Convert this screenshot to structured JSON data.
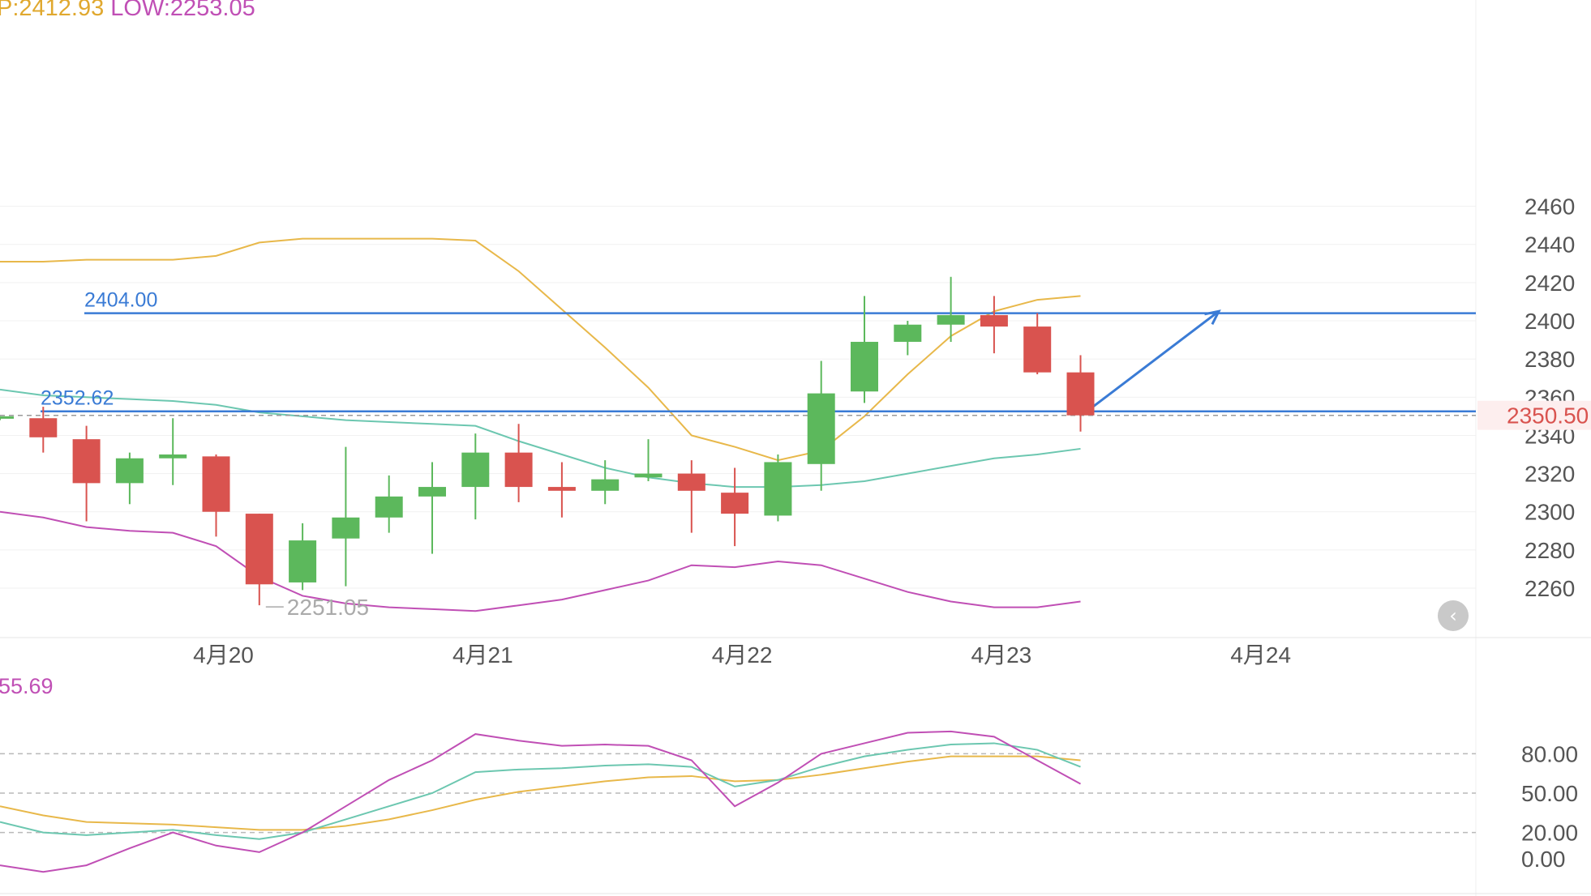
{
  "header": {
    "high_text": "P:2412.93",
    "low_text": "LOW:2253.05",
    "high_color": "#e0a82e",
    "low_color": "#c04fb5"
  },
  "indicator_header": {
    "text": "55.69",
    "color": "#c04fb5"
  },
  "collapse_button": {
    "icon": "chevron-left-icon",
    "glyph": "‹"
  },
  "colors": {
    "up": "#5cb85c",
    "down": "#d9534f",
    "upper_band": "#e8b84a",
    "middle_band": "#6cc7b0",
    "lower_band": "#c04fb5",
    "level_line": "#3a7bd5",
    "current_price": "#d9534f",
    "k_line": "#c04fb5",
    "d_line": "#e8b84a",
    "j_line": "#6cc7b0"
  },
  "chart_data": [
    {
      "type": "candlestick",
      "ylim": [
        2240,
        2470
      ],
      "yticks": [
        2260,
        2280,
        2300,
        2320,
        2340,
        2360,
        2380,
        2400,
        2420,
        2440,
        2460
      ],
      "x_labels": [
        {
          "label": "4月20",
          "index": 5
        },
        {
          "label": "4月21",
          "index": 11
        },
        {
          "label": "4月22",
          "index": 17
        },
        {
          "label": "4月23",
          "index": 23
        },
        {
          "label": "4月24",
          "index": 29
        }
      ],
      "candles": [
        {
          "o": 2349,
          "h": 2350,
          "l": 2348,
          "c": 2350
        },
        {
          "o": 2349,
          "h": 2355,
          "l": 2331,
          "c": 2339
        },
        {
          "o": 2338,
          "h": 2345,
          "l": 2295,
          "c": 2315
        },
        {
          "o": 2315,
          "h": 2331,
          "l": 2304,
          "c": 2328
        },
        {
          "o": 2328,
          "h": 2349,
          "l": 2314,
          "c": 2330
        },
        {
          "o": 2329,
          "h": 2330,
          "l": 2287,
          "c": 2300
        },
        {
          "o": 2299,
          "h": 2299,
          "l": 2251.05,
          "c": 2262
        },
        {
          "o": 2263,
          "h": 2294,
          "l": 2259,
          "c": 2285
        },
        {
          "o": 2286,
          "h": 2334,
          "l": 2261,
          "c": 2297
        },
        {
          "o": 2297,
          "h": 2319,
          "l": 2289,
          "c": 2308
        },
        {
          "o": 2308,
          "h": 2326,
          "l": 2278,
          "c": 2313
        },
        {
          "o": 2313,
          "h": 2341,
          "l": 2296,
          "c": 2331
        },
        {
          "o": 2331,
          "h": 2346,
          "l": 2305,
          "c": 2313
        },
        {
          "o": 2313,
          "h": 2326,
          "l": 2297,
          "c": 2311
        },
        {
          "o": 2311,
          "h": 2327,
          "l": 2304,
          "c": 2317
        },
        {
          "o": 2318,
          "h": 2338,
          "l": 2316,
          "c": 2320
        },
        {
          "o": 2320,
          "h": 2327,
          "l": 2289,
          "c": 2311
        },
        {
          "o": 2310,
          "h": 2323,
          "l": 2282,
          "c": 2299
        },
        {
          "o": 2298,
          "h": 2330,
          "l": 2295,
          "c": 2326
        },
        {
          "o": 2325,
          "h": 2379,
          "l": 2311,
          "c": 2362
        },
        {
          "o": 2363,
          "h": 2413,
          "l": 2357,
          "c": 2389
        },
        {
          "o": 2389,
          "h": 2400,
          "l": 2382,
          "c": 2398
        },
        {
          "o": 2398,
          "h": 2423,
          "l": 2389,
          "c": 2403
        },
        {
          "o": 2403,
          "h": 2413,
          "l": 2383,
          "c": 2397
        },
        {
          "o": 2397,
          "h": 2404,
          "l": 2372,
          "c": 2373
        },
        {
          "o": 2373,
          "h": 2382,
          "l": 2342,
          "c": 2350.5
        }
      ],
      "upper_band": [
        2431,
        2431,
        2432,
        2432,
        2432,
        2434,
        2441,
        2443,
        2443,
        2443,
        2443,
        2442,
        2426,
        2406,
        2386,
        2365,
        2340,
        2334,
        2327,
        2332,
        2350,
        2372,
        2392,
        2405,
        2411,
        2413
      ],
      "middle_band": [
        2364,
        2361,
        2360,
        2359,
        2358,
        2356,
        2352,
        2350,
        2348,
        2347,
        2346,
        2345,
        2337,
        2330,
        2323,
        2318,
        2315,
        2313,
        2313,
        2314,
        2316,
        2320,
        2324,
        2328,
        2330,
        2333
      ],
      "lower_band": [
        2300,
        2297,
        2292,
        2290,
        2289,
        2282,
        2266,
        2256,
        2252,
        2250,
        2249,
        2248,
        2251,
        2254,
        2259,
        2264,
        2272,
        2271,
        2274,
        2272,
        2265,
        2258,
        2253,
        2250,
        2250,
        2253
      ],
      "levels": [
        {
          "value": 2404.0,
          "label": "2404.00"
        },
        {
          "value": 2352.62,
          "label": "2352.62"
        }
      ],
      "current_price": {
        "value": 2350.5,
        "label": "2350.50"
      },
      "min_marker": {
        "index": 6,
        "value": 2251.05,
        "label": "2251.05"
      },
      "projection_arrow": {
        "from_index": 25,
        "from_value": 2352,
        "to_index": 28.2,
        "to_value": 2405
      }
    },
    {
      "type": "line",
      "ylim": [
        -10,
        100
      ],
      "yticks": [
        0,
        20,
        50,
        80
      ],
      "ytick_labels": [
        "0.00",
        "20.00",
        "50.00",
        "80.00"
      ],
      "reference_lines": [
        20,
        50,
        80
      ],
      "k": [
        -5,
        -10,
        -5,
        8,
        20,
        10,
        5,
        20,
        40,
        60,
        75,
        95,
        90,
        86,
        87,
        86,
        75,
        40,
        58,
        80,
        88,
        96,
        97,
        93,
        75,
        57
      ],
      "d": [
        40,
        33,
        28,
        27,
        26,
        24,
        22,
        22,
        25,
        30,
        37,
        45,
        51,
        55,
        59,
        62,
        63,
        59,
        60,
        64,
        69,
        74,
        78,
        78,
        78,
        75
      ],
      "j": [
        28,
        20,
        18,
        20,
        22,
        18,
        15,
        20,
        30,
        40,
        50,
        66,
        68,
        69,
        71,
        72,
        70,
        55,
        60,
        70,
        78,
        83,
        87,
        88,
        83,
        70
      ]
    }
  ]
}
